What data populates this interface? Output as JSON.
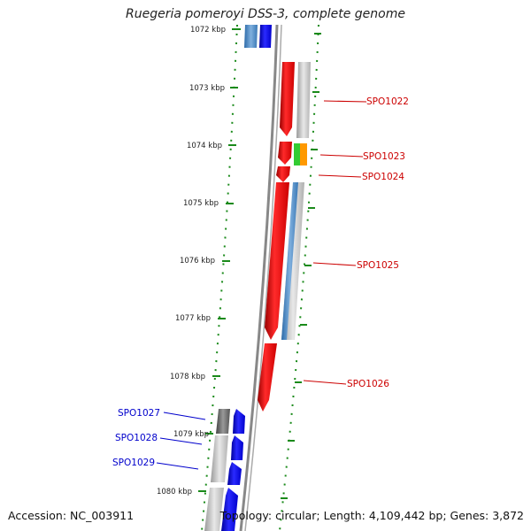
{
  "title": "Ruegeria pomeroyi DSS-3, complete genome",
  "footer": {
    "accession": "Accession: NC_003911",
    "summary": "Topology: circular; Length: 4,109,442 bp; Genes: 3,872"
  },
  "ticks": [
    {
      "label": "1072 kbp",
      "kbp": 1072
    },
    {
      "label": "1073 kbp",
      "kbp": 1073
    },
    {
      "label": "1074 kbp",
      "kbp": 1074
    },
    {
      "label": "1075 kbp",
      "kbp": 1075
    },
    {
      "label": "1076 kbp",
      "kbp": 1076
    },
    {
      "label": "1077 kbp",
      "kbp": 1077
    },
    {
      "label": "1078 kbp",
      "kbp": 1078
    },
    {
      "label": "1079 kbp",
      "kbp": 1079
    },
    {
      "label": "1080 kbp",
      "kbp": 1080
    }
  ],
  "gene_labels": [
    {
      "name": "SPO1022",
      "strand": "forward"
    },
    {
      "name": "SPO1023",
      "strand": "forward"
    },
    {
      "name": "SPO1024",
      "strand": "forward"
    },
    {
      "name": "SPO1025",
      "strand": "forward"
    },
    {
      "name": "SPO1026",
      "strand": "forward"
    },
    {
      "name": "SPO1027",
      "strand": "reverse"
    },
    {
      "name": "SPO1028",
      "strand": "reverse"
    },
    {
      "name": "SPO1029",
      "strand": "reverse"
    }
  ],
  "colors": {
    "forward_gene": "#e00000",
    "reverse_gene": "#0000ee",
    "forward_label": "#cc0000",
    "reverse_label": "#0000cc",
    "tick": "#1a8a1a",
    "backbone": "#888888",
    "cds_band": "#c0c0c0",
    "steel_band": "#4a86c0",
    "green_feature": "#33cc33",
    "orange_feature": "#ff9900"
  }
}
